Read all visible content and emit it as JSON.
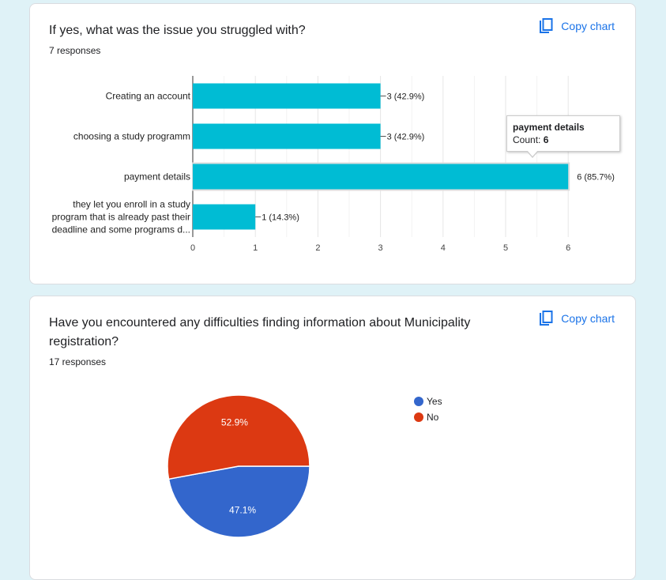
{
  "copy_label": "Copy chart",
  "q1": {
    "title": "If yes, what was the issue you struggled with?",
    "responses": "7 responses",
    "chart_data": {
      "type": "bar",
      "orientation": "horizontal",
      "title": "If yes, what was the issue you struggled with?",
      "categories": [
        [
          "Creating an account"
        ],
        [
          "choosing a study programm"
        ],
        [
          "payment details"
        ],
        [
          "they let you enroll in a study",
          "program that is already past their",
          "deadline and some programs d..."
        ]
      ],
      "values": [
        3,
        3,
        6,
        1
      ],
      "value_labels": [
        "3 (42.9%)",
        "3 (42.9%)",
        "6 (85.7%)",
        "1 (14.3%)"
      ],
      "xlim": [
        0,
        6
      ],
      "xticks": [
        0,
        1,
        2,
        3,
        4,
        5,
        6
      ],
      "bar_color": "#00bcd4",
      "highlight_index": 2,
      "grid": true
    },
    "tooltip": {
      "title": "payment details",
      "count_label": "Count:",
      "count_value": "6"
    }
  },
  "q2": {
    "title": "Have you encountered any difficulties finding information about Municipality registration?",
    "responses": "17 responses",
    "chart_data": {
      "type": "pie",
      "title": "Have you encountered any difficulties finding information about Municipality registration?",
      "labels": [
        "Yes",
        "No"
      ],
      "values": [
        47.1,
        52.9
      ],
      "slice_labels": [
        "47.1%",
        "52.9%"
      ],
      "colors": [
        "#3366cc",
        "#dc3912"
      ],
      "legend_position": "right"
    }
  }
}
